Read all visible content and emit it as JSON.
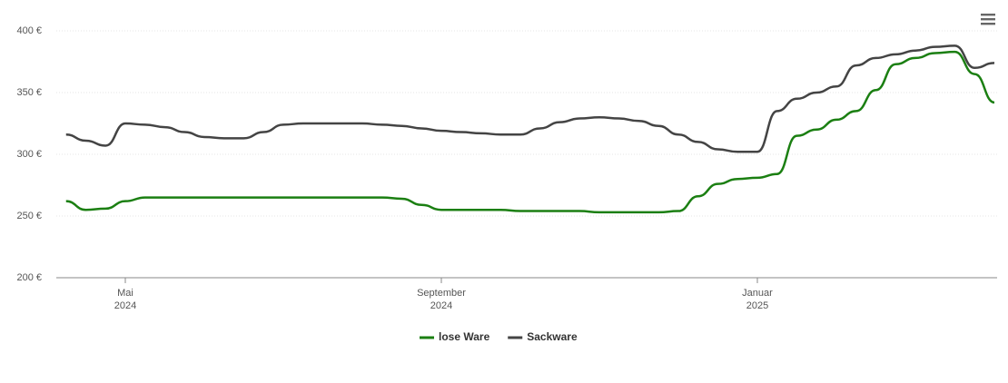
{
  "chart_data": {
    "type": "line",
    "categories": [
      null,
      null,
      null,
      "Mai 2024",
      null,
      null,
      null,
      null,
      null,
      null,
      null,
      null,
      null,
      null,
      null,
      null,
      null,
      null,
      null,
      "September 2024",
      null,
      null,
      null,
      null,
      null,
      null,
      null,
      null,
      null,
      null,
      null,
      null,
      null,
      null,
      null,
      "Januar 2025",
      null,
      null,
      null,
      null,
      null,
      null,
      null,
      null,
      null,
      null,
      null,
      null
    ],
    "series": [
      {
        "name": "lose Ware",
        "color": "#1b7f12",
        "values": [
          262,
          255,
          256,
          262,
          265,
          265,
          265,
          265,
          265,
          265,
          265,
          265,
          265,
          265,
          265,
          265,
          265,
          264,
          259,
          255,
          255,
          255,
          255,
          254,
          254,
          254,
          254,
          253,
          253,
          253,
          253,
          254,
          266,
          276,
          280,
          281,
          284,
          315,
          320,
          328,
          335,
          352,
          373,
          378,
          382,
          383,
          365,
          342
        ]
      },
      {
        "name": "Sackware",
        "color": "#444444",
        "values": [
          316,
          311,
          307,
          325,
          324,
          322,
          318,
          314,
          313,
          313,
          318,
          324,
          325,
          325,
          325,
          325,
          324,
          323,
          321,
          319,
          318,
          317,
          316,
          316,
          321,
          326,
          329,
          330,
          329,
          327,
          323,
          316,
          310,
          304,
          302,
          302,
          335,
          345,
          350,
          355,
          372,
          378,
          381,
          384,
          387,
          388,
          370,
          374
        ]
      }
    ],
    "ylim": [
      200,
      400
    ],
    "yticks": [
      {
        "value": 200,
        "label": "200 €"
      },
      {
        "value": 250,
        "label": "250 €"
      },
      {
        "value": 300,
        "label": "300 €"
      },
      {
        "value": 350,
        "label": "350 €"
      },
      {
        "value": 400,
        "label": "400 €"
      }
    ],
    "grid": true,
    "legend": "bottom"
  }
}
